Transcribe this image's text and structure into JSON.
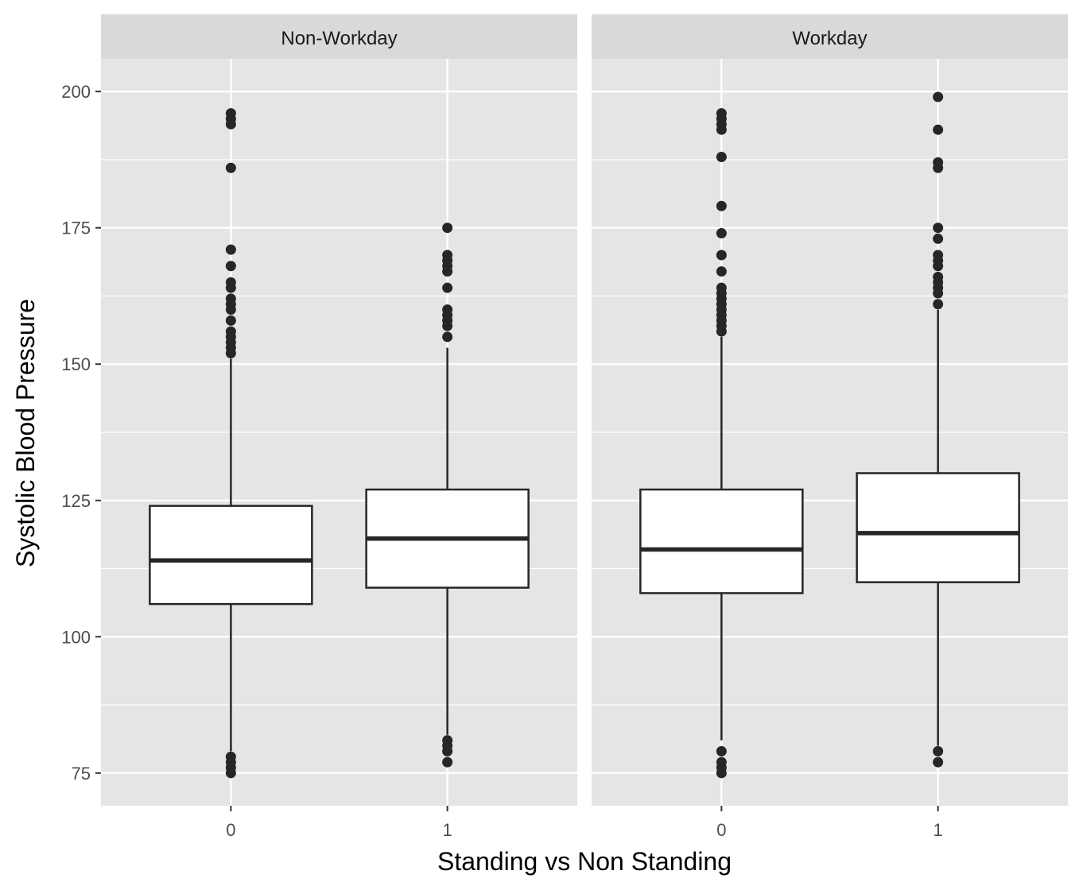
{
  "chart_data": {
    "type": "boxplot",
    "xlabel": "Standing vs Non Standing",
    "ylabel": "Systolic Blood Pressure",
    "ylim": [
      69,
      206
    ],
    "yticks": [
      75,
      100,
      125,
      150,
      175,
      200
    ],
    "categories": [
      "0",
      "1"
    ],
    "grid": true,
    "facets": [
      {
        "label": "Non-Workday",
        "boxes": [
          {
            "x": "0",
            "whisker_low": 79,
            "q1": 106,
            "median": 114,
            "q3": 124,
            "whisker_high": 151,
            "outliers": [
              75,
              76,
              77,
              78,
              152,
              153,
              154,
              155,
              156,
              158,
              160,
              161,
              162,
              164,
              165,
              168,
              171,
              186,
              194,
              195,
              196
            ]
          },
          {
            "x": "1",
            "whisker_low": 82,
            "q1": 109,
            "median": 118,
            "q3": 127,
            "whisker_high": 153,
            "outliers": [
              77,
              79,
              80,
              81,
              155,
              157,
              158,
              159,
              160,
              164,
              167,
              168,
              169,
              170,
              175
            ]
          }
        ]
      },
      {
        "label": "Workday",
        "boxes": [
          {
            "x": "0",
            "whisker_low": 81,
            "q1": 108,
            "median": 116,
            "q3": 127,
            "whisker_high": 155,
            "outliers": [
              75,
              76,
              77,
              79,
              156,
              157,
              158,
              159,
              160,
              161,
              162,
              163,
              164,
              167,
              170,
              174,
              179,
              188,
              193,
              194,
              195,
              196
            ]
          },
          {
            "x": "1",
            "whisker_low": 80,
            "q1": 110,
            "median": 119,
            "q3": 130,
            "whisker_high": 160,
            "outliers": [
              77,
              79,
              161,
              163,
              164,
              165,
              166,
              168,
              169,
              170,
              173,
              175,
              186,
              187,
              193,
              199
            ]
          }
        ]
      }
    ]
  }
}
